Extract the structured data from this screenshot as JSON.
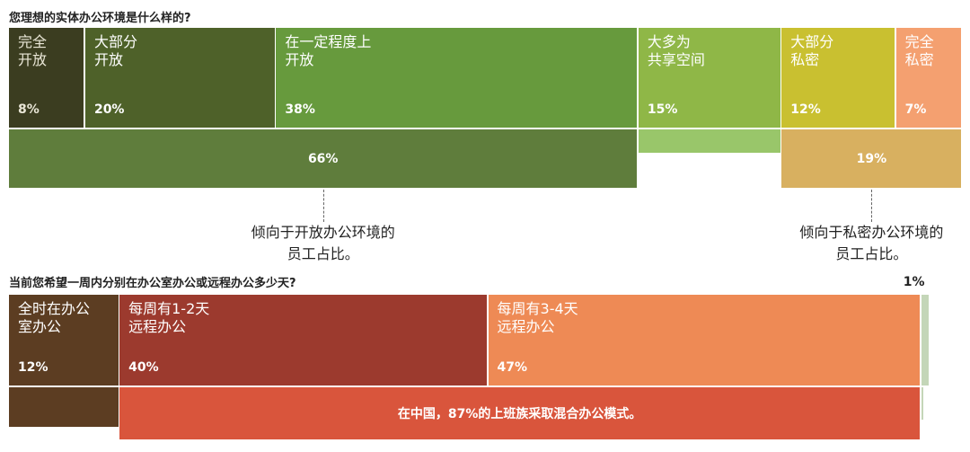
{
  "chart_data": [
    {
      "type": "bar",
      "title": "您理想的实体办公环境是什么样的?",
      "categories": [
        "完全\n开放",
        "大部分\n开放",
        "在一定程度上\n开放",
        "大多为\n共享空间",
        "大部分\n私密",
        "完全\n私密"
      ],
      "values": [
        8,
        20,
        38,
        15,
        12,
        7
      ],
      "value_labels": [
        "8%",
        "20%",
        "38%",
        "15%",
        "12%",
        "7%"
      ],
      "colors": [
        "#3b3d20",
        "#4e6129",
        "#679a3d",
        "#8fb747",
        "#c9c030",
        "#f4a070"
      ],
      "groups": [
        {
          "label": "66%",
          "value": 66,
          "from": 0,
          "to": 2,
          "color": "#5f7d3c",
          "note": "倾向于开放办公环境的\n员工占比。"
        },
        {
          "label": "19%",
          "value": 19,
          "from": 4,
          "to": 5,
          "color": "#d8b060",
          "note": "倾向于私密办公环境的\n员工占比。"
        }
      ],
      "shared_strip_color": "#99c66a"
    },
    {
      "type": "bar",
      "title": "当前您希望一周内分别在办公室办公或远程办公多少天?",
      "categories": [
        "全时在办公\n室办公",
        "每周有1-2天\n远程办公",
        "每周有3-4天\n远程办公",
        ""
      ],
      "values": [
        12,
        40,
        47,
        1
      ],
      "value_labels": [
        "12%",
        "40%",
        "47%",
        "1%"
      ],
      "colors": [
        "#5c3d22",
        "#9c3a2e",
        "#ee8a55",
        "#c4d6b8"
      ],
      "groups": [
        {
          "label": "在中国，87%的上班族采取混合办公模式。",
          "value": 87,
          "from": 1,
          "to": 2,
          "color": "#d9553c"
        }
      ]
    }
  ]
}
